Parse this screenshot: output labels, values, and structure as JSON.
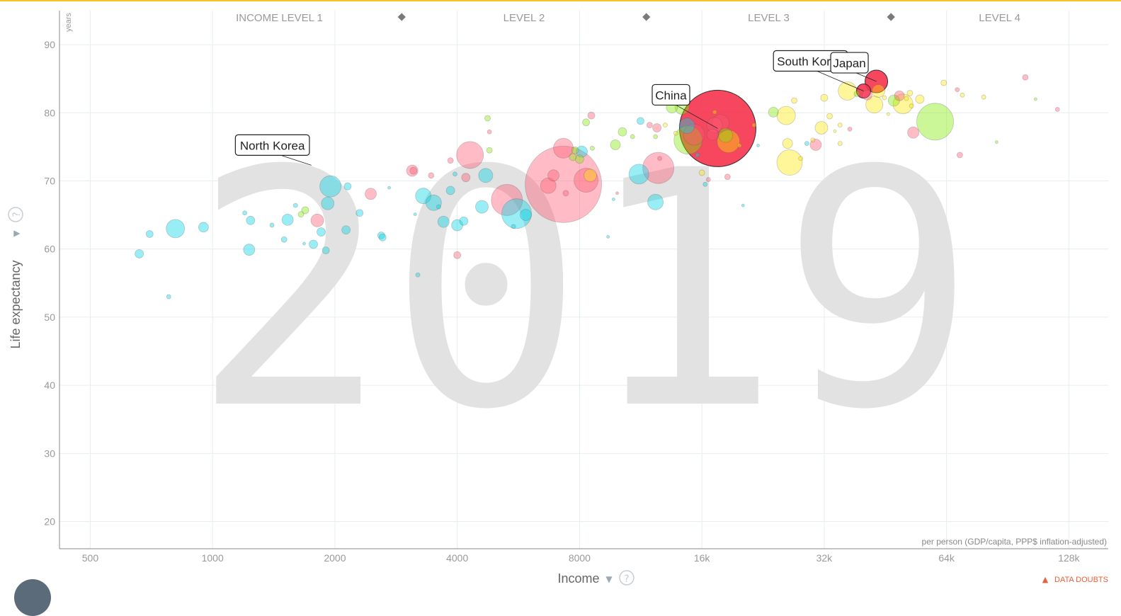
{
  "chart_data": {
    "type": "scatter",
    "year_watermark": "2019",
    "xlabel": "Income",
    "ylabel": "Life expectancy",
    "y_unit": "years",
    "x_note": "per person (GDP/capita, PPP$ inflation-adjusted)",
    "x_scale": "log2",
    "xlim": [
      420,
      160000
    ],
    "ylim": [
      16,
      95
    ],
    "x_ticks": [
      500,
      1000,
      2000,
      4000,
      8000,
      16000,
      32000,
      64000,
      128000
    ],
    "x_tick_labels": [
      "500",
      "1000",
      "2000",
      "4000",
      "8000",
      "16k",
      "32k",
      "64k",
      "128k"
    ],
    "y_ticks": [
      20,
      30,
      40,
      50,
      60,
      70,
      80,
      90
    ],
    "income_levels": [
      "INCOME LEVEL 1",
      "LEVEL 2",
      "LEVEL 3",
      "LEVEL 4"
    ],
    "grid": true,
    "colors": {
      "africa": "#00d5e9",
      "asia": "#ff5872",
      "americas": "#7feb00",
      "europe": "#ffe700",
      "highlight": "#f5334e"
    },
    "labeled_points": [
      {
        "name": "North Korea",
        "income": 1750,
        "life": 72.3
      },
      {
        "name": "China",
        "income": 17500,
        "life": 77.7
      },
      {
        "name": "South Korea",
        "income": 40000,
        "life": 83.2
      },
      {
        "name": "Japan",
        "income": 43000,
        "life": 84.6
      }
    ],
    "bubbles": [
      {
        "x": 660,
        "y": 59.3,
        "s": 6,
        "c": "africa"
      },
      {
        "x": 700,
        "y": 62.2,
        "s": 5,
        "c": "africa"
      },
      {
        "x": 810,
        "y": 63,
        "s": 13,
        "c": "africa"
      },
      {
        "x": 780,
        "y": 53,
        "s": 3,
        "c": "africa"
      },
      {
        "x": 950,
        "y": 63.2,
        "s": 7,
        "c": "africa"
      },
      {
        "x": 1200,
        "y": 65.3,
        "s": 3,
        "c": "africa"
      },
      {
        "x": 1240,
        "y": 64.2,
        "s": 6,
        "c": "africa"
      },
      {
        "x": 1230,
        "y": 59.9,
        "s": 8,
        "c": "africa"
      },
      {
        "x": 1400,
        "y": 63.5,
        "s": 3,
        "c": "africa"
      },
      {
        "x": 1500,
        "y": 61.4,
        "s": 4,
        "c": "africa"
      },
      {
        "x": 1530,
        "y": 64.3,
        "s": 8,
        "c": "africa"
      },
      {
        "x": 1600,
        "y": 66.4,
        "s": 3,
        "c": "africa"
      },
      {
        "x": 1650,
        "y": 65.1,
        "s": 4,
        "c": "americas"
      },
      {
        "x": 1690,
        "y": 65.7,
        "s": 5,
        "c": "americas"
      },
      {
        "x": 1680,
        "y": 60.8,
        "s": 2,
        "c": "africa"
      },
      {
        "x": 1770,
        "y": 60.7,
        "s": 6,
        "c": "africa"
      },
      {
        "x": 1810,
        "y": 64.2,
        "s": 9,
        "c": "asia"
      },
      {
        "x": 1850,
        "y": 62.5,
        "s": 6,
        "c": "africa"
      },
      {
        "x": 1900,
        "y": 59.8,
        "s": 5,
        "c": "africa"
      },
      {
        "x": 1920,
        "y": 66.7,
        "s": 9,
        "c": "africa"
      },
      {
        "x": 1950,
        "y": 69.2,
        "s": 15,
        "c": "africa"
      },
      {
        "x": 2150,
        "y": 69.2,
        "s": 5,
        "c": "africa"
      },
      {
        "x": 2130,
        "y": 62.8,
        "s": 6,
        "c": "africa"
      },
      {
        "x": 2300,
        "y": 65.3,
        "s": 5,
        "c": "africa"
      },
      {
        "x": 2450,
        "y": 68.1,
        "s": 8,
        "c": "asia"
      },
      {
        "x": 2600,
        "y": 62,
        "s": 5,
        "c": "africa"
      },
      {
        "x": 2620,
        "y": 61.7,
        "s": 5,
        "c": "africa"
      },
      {
        "x": 2720,
        "y": 69,
        "s": 2,
        "c": "africa"
      },
      {
        "x": 3100,
        "y": 71.5,
        "s": 8,
        "c": "asia"
      },
      {
        "x": 3120,
        "y": 71.5,
        "s": 5,
        "c": "asia"
      },
      {
        "x": 3150,
        "y": 65.1,
        "s": 2,
        "c": "africa"
      },
      {
        "x": 3200,
        "y": 56.2,
        "s": 3,
        "c": "africa"
      },
      {
        "x": 3300,
        "y": 67.8,
        "s": 11,
        "c": "africa"
      },
      {
        "x": 3500,
        "y": 66.8,
        "s": 11,
        "c": "africa"
      },
      {
        "x": 3450,
        "y": 70.8,
        "s": 4,
        "c": "asia"
      },
      {
        "x": 3600,
        "y": 66.2,
        "s": 3,
        "c": "africa"
      },
      {
        "x": 3700,
        "y": 64,
        "s": 8,
        "c": "africa"
      },
      {
        "x": 3850,
        "y": 68.6,
        "s": 6,
        "c": "africa"
      },
      {
        "x": 3850,
        "y": 73,
        "s": 4,
        "c": "asia"
      },
      {
        "x": 4000,
        "y": 59.1,
        "s": 5,
        "c": "asia"
      },
      {
        "x": 4000,
        "y": 63.5,
        "s": 8,
        "c": "africa"
      },
      {
        "x": 4150,
        "y": 64.1,
        "s": 6,
        "c": "africa"
      },
      {
        "x": 3950,
        "y": 71,
        "s": 3,
        "c": "africa"
      },
      {
        "x": 4300,
        "y": 73.8,
        "s": 19,
        "c": "asia"
      },
      {
        "x": 4200,
        "y": 70.5,
        "s": 6,
        "c": "asia"
      },
      {
        "x": 4600,
        "y": 66.2,
        "s": 9,
        "c": "africa"
      },
      {
        "x": 4700,
        "y": 70.8,
        "s": 10,
        "c": "africa"
      },
      {
        "x": 4800,
        "y": 74.5,
        "s": 4,
        "c": "americas"
      },
      {
        "x": 4800,
        "y": 77.2,
        "s": 3,
        "c": "asia"
      },
      {
        "x": 4750,
        "y": 79.2,
        "s": 4,
        "c": "americas"
      },
      {
        "x": 5300,
        "y": 67.2,
        "s": 22,
        "c": "asia"
      },
      {
        "x": 5600,
        "y": 65.2,
        "s": 21,
        "c": "africa"
      },
      {
        "x": 5500,
        "y": 63.3,
        "s": 3,
        "c": "africa"
      },
      {
        "x": 5900,
        "y": 65,
        "s": 8,
        "c": "africa"
      },
      {
        "x": 6700,
        "y": 69.3,
        "s": 11,
        "c": "asia"
      },
      {
        "x": 6900,
        "y": 70.8,
        "s": 8,
        "c": "asia"
      },
      {
        "x": 7300,
        "y": 69.5,
        "s": 54,
        "c": "asia"
      },
      {
        "x": 7300,
        "y": 74.8,
        "s": 14,
        "c": "asia"
      },
      {
        "x": 7400,
        "y": 68.2,
        "s": 4,
        "c": "asia"
      },
      {
        "x": 7700,
        "y": 73.5,
        "s": 5,
        "c": "americas"
      },
      {
        "x": 7800,
        "y": 74.5,
        "s": 5,
        "c": "americas"
      },
      {
        "x": 8000,
        "y": 73.2,
        "s": 6,
        "c": "americas"
      },
      {
        "x": 8100,
        "y": 74.3,
        "s": 8,
        "c": "africa"
      },
      {
        "x": 8300,
        "y": 70.1,
        "s": 17,
        "c": "asia"
      },
      {
        "x": 8500,
        "y": 70.8,
        "s": 9,
        "c": "europe"
      },
      {
        "x": 8300,
        "y": 78.6,
        "s": 5,
        "c": "americas"
      },
      {
        "x": 8550,
        "y": 79.6,
        "s": 5,
        "c": "asia"
      },
      {
        "x": 8600,
        "y": 74.8,
        "s": 3,
        "c": "americas"
      },
      {
        "x": 9400,
        "y": 61.8,
        "s": 2,
        "c": "africa"
      },
      {
        "x": 9700,
        "y": 67.3,
        "s": 2,
        "c": "africa"
      },
      {
        "x": 9900,
        "y": 68.2,
        "s": 2,
        "c": "asia"
      },
      {
        "x": 9800,
        "y": 75.3,
        "s": 7,
        "c": "americas"
      },
      {
        "x": 10200,
        "y": 77.2,
        "s": 6,
        "c": "americas"
      },
      {
        "x": 10800,
        "y": 76.5,
        "s": 3,
        "c": "americas"
      },
      {
        "x": 11200,
        "y": 71,
        "s": 14,
        "c": "africa"
      },
      {
        "x": 11300,
        "y": 78.8,
        "s": 5,
        "c": "africa"
      },
      {
        "x": 11900,
        "y": 78.2,
        "s": 4,
        "c": "asia"
      },
      {
        "x": 12300,
        "y": 76.5,
        "s": 3,
        "c": "americas"
      },
      {
        "x": 12400,
        "y": 77.8,
        "s": 6,
        "c": "asia"
      },
      {
        "x": 12300,
        "y": 66.9,
        "s": 11,
        "c": "africa"
      },
      {
        "x": 12500,
        "y": 71.9,
        "s": 22,
        "c": "asia"
      },
      {
        "x": 12600,
        "y": 73.3,
        "s": 3,
        "c": "asia"
      },
      {
        "x": 13000,
        "y": 78.2,
        "s": 3,
        "c": "europe"
      },
      {
        "x": 13500,
        "y": 80.8,
        "s": 8,
        "c": "americas"
      },
      {
        "x": 13800,
        "y": 77,
        "s": 3,
        "c": "europe"
      },
      {
        "x": 14300,
        "y": 80.8,
        "s": 10,
        "c": "americas"
      },
      {
        "x": 14700,
        "y": 78.1,
        "s": 11,
        "c": "africa"
      },
      {
        "x": 14800,
        "y": 76,
        "s": 20,
        "c": "americas"
      },
      {
        "x": 15300,
        "y": 76.8,
        "s": 15,
        "c": "asia"
      },
      {
        "x": 15600,
        "y": 73.8,
        "s": 3,
        "c": "africa"
      },
      {
        "x": 16000,
        "y": 71.2,
        "s": 4,
        "c": "europe"
      },
      {
        "x": 16300,
        "y": 69.5,
        "s": 3,
        "c": "africa"
      },
      {
        "x": 16600,
        "y": 70.2,
        "s": 3,
        "c": "asia"
      },
      {
        "x": 17000,
        "y": 76.8,
        "s": 8,
        "c": "asia"
      },
      {
        "x": 17500,
        "y": 77.7,
        "s": 54,
        "c": "highlight"
      },
      {
        "x": 17200,
        "y": 78.2,
        "s": 11,
        "c": "asia"
      },
      {
        "x": 17800,
        "y": 78.5,
        "s": 12,
        "c": "asia"
      },
      {
        "x": 18300,
        "y": 76.7,
        "s": 10,
        "c": "americas"
      },
      {
        "x": 18600,
        "y": 75.8,
        "s": 16,
        "c": "europe"
      },
      {
        "x": 18500,
        "y": 70.6,
        "s": 4,
        "c": "asia"
      },
      {
        "x": 17200,
        "y": 80.1,
        "s": 3,
        "c": "europe"
      },
      {
        "x": 19800,
        "y": 75.2,
        "s": 3,
        "c": "europe"
      },
      {
        "x": 20200,
        "y": 66.4,
        "s": 2,
        "c": "africa"
      },
      {
        "x": 21500,
        "y": 78.2,
        "s": 3,
        "c": "europe"
      },
      {
        "x": 22000,
        "y": 75.2,
        "s": 2,
        "c": "africa"
      },
      {
        "x": 24000,
        "y": 80.1,
        "s": 7,
        "c": "americas"
      },
      {
        "x": 25800,
        "y": 79.6,
        "s": 13,
        "c": "europe"
      },
      {
        "x": 26300,
        "y": 72.7,
        "s": 18,
        "c": "europe"
      },
      {
        "x": 26000,
        "y": 75.5,
        "s": 7,
        "c": "europe"
      },
      {
        "x": 27000,
        "y": 81.8,
        "s": 4,
        "c": "europe"
      },
      {
        "x": 28000,
        "y": 73.3,
        "s": 3,
        "c": "europe"
      },
      {
        "x": 29000,
        "y": 75.5,
        "s": 3,
        "c": "africa"
      },
      {
        "x": 30000,
        "y": 76,
        "s": 3,
        "c": "europe"
      },
      {
        "x": 30500,
        "y": 75.3,
        "s": 8,
        "c": "asia"
      },
      {
        "x": 31500,
        "y": 77.8,
        "s": 9,
        "c": "europe"
      },
      {
        "x": 32000,
        "y": 82.2,
        "s": 5,
        "c": "europe"
      },
      {
        "x": 33000,
        "y": 79.5,
        "s": 4,
        "c": "europe"
      },
      {
        "x": 34000,
        "y": 77.3,
        "s": 2,
        "c": "europe"
      },
      {
        "x": 35000,
        "y": 78.2,
        "s": 3,
        "c": "europe"
      },
      {
        "x": 35000,
        "y": 75.5,
        "s": 3,
        "c": "europe"
      },
      {
        "x": 36500,
        "y": 83.2,
        "s": 13,
        "c": "europe"
      },
      {
        "x": 37000,
        "y": 77.6,
        "s": 3,
        "c": "asia"
      },
      {
        "x": 38500,
        "y": 82.8,
        "s": 4,
        "c": "americas"
      },
      {
        "x": 40000,
        "y": 83.2,
        "s": 10,
        "c": "highlight"
      },
      {
        "x": 40800,
        "y": 82.6,
        "s": 7,
        "c": "asia"
      },
      {
        "x": 43000,
        "y": 84.6,
        "s": 16,
        "c": "highlight"
      },
      {
        "x": 43500,
        "y": 83.2,
        "s": 9,
        "c": "europe"
      },
      {
        "x": 42500,
        "y": 81.2,
        "s": 12,
        "c": "europe"
      },
      {
        "x": 45000,
        "y": 82.2,
        "s": 3,
        "c": "europe"
      },
      {
        "x": 46000,
        "y": 79.8,
        "s": 2,
        "c": "europe"
      },
      {
        "x": 47500,
        "y": 81.8,
        "s": 8,
        "c": "americas"
      },
      {
        "x": 49000,
        "y": 82.5,
        "s": 7,
        "c": "asia"
      },
      {
        "x": 50000,
        "y": 81.3,
        "s": 14,
        "c": "europe"
      },
      {
        "x": 51000,
        "y": 82.1,
        "s": 3,
        "c": "europe"
      },
      {
        "x": 52000,
        "y": 82.9,
        "s": 4,
        "c": "europe"
      },
      {
        "x": 52500,
        "y": 81,
        "s": 3,
        "c": "europe"
      },
      {
        "x": 53000,
        "y": 77.1,
        "s": 8,
        "c": "asia"
      },
      {
        "x": 55000,
        "y": 82,
        "s": 6,
        "c": "europe"
      },
      {
        "x": 60000,
        "y": 78.7,
        "s": 26,
        "c": "americas"
      },
      {
        "x": 63000,
        "y": 84.4,
        "s": 4,
        "c": "europe"
      },
      {
        "x": 68000,
        "y": 83.4,
        "s": 3,
        "c": "asia"
      },
      {
        "x": 70000,
        "y": 82.6,
        "s": 3,
        "c": "europe"
      },
      {
        "x": 69000,
        "y": 73.8,
        "s": 4,
        "c": "asia"
      },
      {
        "x": 79000,
        "y": 82.3,
        "s": 3,
        "c": "europe"
      },
      {
        "x": 85000,
        "y": 75.7,
        "s": 2,
        "c": "americas"
      },
      {
        "x": 100000,
        "y": 85.2,
        "s": 4,
        "c": "asia"
      },
      {
        "x": 106000,
        "y": 82,
        "s": 2,
        "c": "americas"
      },
      {
        "x": 120000,
        "y": 80.5,
        "s": 3,
        "c": "asia"
      }
    ]
  },
  "controls": {
    "doubts_label": "DATA DOUBTS",
    "help_glyph": "?",
    "caret": "▼",
    "warn_glyph": "▲"
  }
}
